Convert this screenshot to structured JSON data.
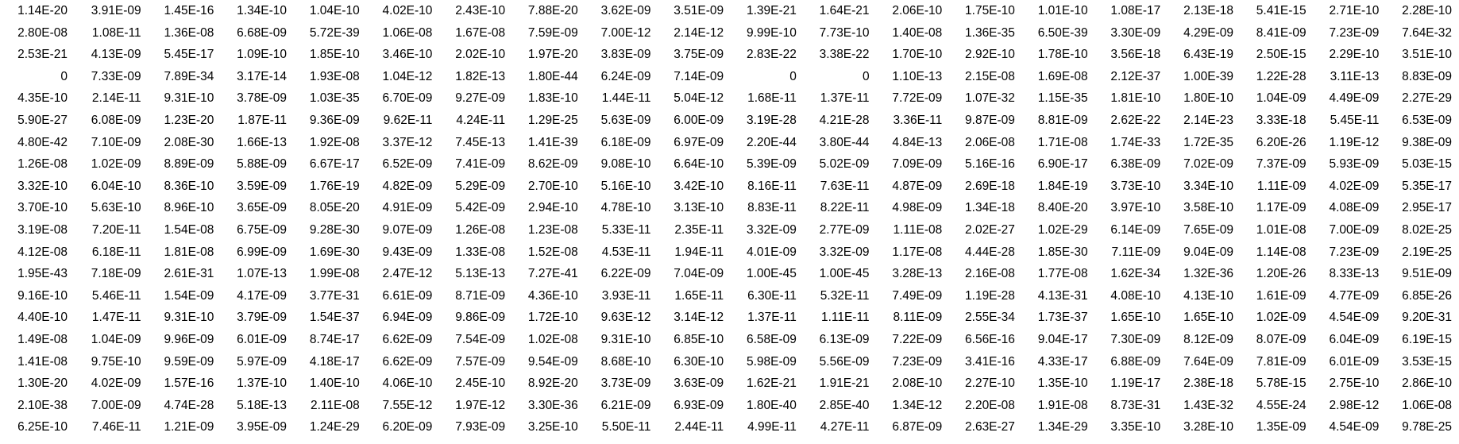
{
  "spreadsheet": {
    "rows": [
      [
        "1.14E-20",
        "3.91E-09",
        "1.45E-16",
        "1.34E-10",
        "1.04E-10",
        "4.02E-10",
        "2.43E-10",
        "7.88E-20",
        "3.62E-09",
        "3.51E-09",
        "1.39E-21",
        "1.64E-21",
        "2.06E-10",
        "1.75E-10",
        "1.01E-10",
        "1.08E-17",
        "2.13E-18",
        "5.41E-15",
        "2.71E-10",
        "2.28E-10"
      ],
      [
        "2.80E-08",
        "1.08E-11",
        "1.36E-08",
        "6.68E-09",
        "5.72E-39",
        "1.06E-08",
        "1.67E-08",
        "7.59E-09",
        "7.00E-12",
        "2.14E-12",
        "9.99E-10",
        "7.73E-10",
        "1.40E-08",
        "1.36E-35",
        "6.50E-39",
        "3.30E-09",
        "4.29E-09",
        "8.41E-09",
        "7.23E-09",
        "7.64E-32"
      ],
      [
        "2.53E-21",
        "4.13E-09",
        "5.45E-17",
        "1.09E-10",
        "1.85E-10",
        "3.46E-10",
        "2.02E-10",
        "1.97E-20",
        "3.83E-09",
        "3.75E-09",
        "2.83E-22",
        "3.38E-22",
        "1.70E-10",
        "2.92E-10",
        "1.78E-10",
        "3.56E-18",
        "6.43E-19",
        "2.50E-15",
        "2.29E-10",
        "3.51E-10"
      ],
      [
        "0",
        "7.33E-09",
        "7.89E-34",
        "3.17E-14",
        "1.93E-08",
        "1.04E-12",
        "1.82E-13",
        "1.80E-44",
        "6.24E-09",
        "7.14E-09",
        "0",
        "0",
        "1.10E-13",
        "2.15E-08",
        "1.69E-08",
        "2.12E-37",
        "1.00E-39",
        "1.22E-28",
        "3.11E-13",
        "8.83E-09"
      ],
      [
        "4.35E-10",
        "2.14E-11",
        "9.31E-10",
        "3.78E-09",
        "1.03E-35",
        "6.70E-09",
        "9.27E-09",
        "1.83E-10",
        "1.44E-11",
        "5.04E-12",
        "1.68E-11",
        "1.37E-11",
        "7.72E-09",
        "1.07E-32",
        "1.15E-35",
        "1.81E-10",
        "1.80E-10",
        "1.04E-09",
        "4.49E-09",
        "2.27E-29"
      ],
      [
        "5.90E-27",
        "6.08E-09",
        "1.23E-20",
        "1.87E-11",
        "9.36E-09",
        "9.62E-11",
        "4.24E-11",
        "1.29E-25",
        "5.63E-09",
        "6.00E-09",
        "3.19E-28",
        "4.21E-28",
        "3.36E-11",
        "9.87E-09",
        "8.81E-09",
        "2.62E-22",
        "2.14E-23",
        "3.33E-18",
        "5.45E-11",
        "6.53E-09"
      ],
      [
        "4.80E-42",
        "7.10E-09",
        "2.08E-30",
        "1.66E-13",
        "1.92E-08",
        "3.37E-12",
        "7.45E-13",
        "1.41E-39",
        "6.18E-09",
        "6.97E-09",
        "2.20E-44",
        "3.80E-44",
        "4.84E-13",
        "2.06E-08",
        "1.71E-08",
        "1.74E-33",
        "1.72E-35",
        "6.20E-26",
        "1.19E-12",
        "9.38E-09"
      ],
      [
        "1.26E-08",
        "1.02E-09",
        "8.89E-09",
        "5.88E-09",
        "6.67E-17",
        "6.52E-09",
        "7.41E-09",
        "8.62E-09",
        "9.08E-10",
        "6.64E-10",
        "5.39E-09",
        "5.02E-09",
        "7.09E-09",
        "5.16E-16",
        "6.90E-17",
        "6.38E-09",
        "7.02E-09",
        "7.37E-09",
        "5.93E-09",
        "5.03E-15"
      ],
      [
        "3.32E-10",
        "6.04E-10",
        "8.36E-10",
        "3.59E-09",
        "1.76E-19",
        "4.82E-09",
        "5.29E-09",
        "2.70E-10",
        "5.16E-10",
        "3.42E-10",
        "8.16E-11",
        "7.63E-11",
        "4.87E-09",
        "2.69E-18",
        "1.84E-19",
        "3.73E-10",
        "3.34E-10",
        "1.11E-09",
        "4.02E-09",
        "5.35E-17"
      ],
      [
        "3.70E-10",
        "5.63E-10",
        "8.96E-10",
        "3.65E-09",
        "8.05E-20",
        "4.91E-09",
        "5.42E-09",
        "2.94E-10",
        "4.78E-10",
        "3.13E-10",
        "8.83E-11",
        "8.22E-11",
        "4.98E-09",
        "1.34E-18",
        "8.40E-20",
        "3.97E-10",
        "3.58E-10",
        "1.17E-09",
        "4.08E-09",
        "2.95E-17"
      ],
      [
        "3.19E-08",
        "7.20E-11",
        "1.54E-08",
        "6.75E-09",
        "9.28E-30",
        "9.07E-09",
        "1.26E-08",
        "1.23E-08",
        "5.33E-11",
        "2.35E-11",
        "3.32E-09",
        "2.77E-09",
        "1.11E-08",
        "2.02E-27",
        "1.02E-29",
        "6.14E-09",
        "7.65E-09",
        "1.01E-08",
        "7.00E-09",
        "8.02E-25"
      ],
      [
        "4.12E-08",
        "6.18E-11",
        "1.81E-08",
        "6.99E-09",
        "1.69E-30",
        "9.43E-09",
        "1.33E-08",
        "1.52E-08",
        "4.53E-11",
        "1.94E-11",
        "4.01E-09",
        "3.32E-09",
        "1.17E-08",
        "4.44E-28",
        "1.85E-30",
        "7.11E-09",
        "9.04E-09",
        "1.14E-08",
        "7.23E-09",
        "2.19E-25"
      ],
      [
        "1.95E-43",
        "7.18E-09",
        "2.61E-31",
        "1.07E-13",
        "1.99E-08",
        "2.47E-12",
        "5.13E-13",
        "7.27E-41",
        "6.22E-09",
        "7.04E-09",
        "1.00E-45",
        "1.00E-45",
        "3.28E-13",
        "2.16E-08",
        "1.77E-08",
        "1.62E-34",
        "1.32E-36",
        "1.20E-26",
        "8.33E-13",
        "9.51E-09"
      ],
      [
        "9.16E-10",
        "5.46E-11",
        "1.54E-09",
        "4.17E-09",
        "3.77E-31",
        "6.61E-09",
        "8.71E-09",
        "4.36E-10",
        "3.93E-11",
        "1.65E-11",
        "6.30E-11",
        "5.32E-11",
        "7.49E-09",
        "1.19E-28",
        "4.13E-31",
        "4.08E-10",
        "4.13E-10",
        "1.61E-09",
        "4.77E-09",
        "6.85E-26"
      ],
      [
        "4.40E-10",
        "1.47E-11",
        "9.31E-10",
        "3.79E-09",
        "1.54E-37",
        "6.94E-09",
        "9.86E-09",
        "1.72E-10",
        "9.63E-12",
        "3.14E-12",
        "1.37E-11",
        "1.11E-11",
        "8.11E-09",
        "2.55E-34",
        "1.73E-37",
        "1.65E-10",
        "1.65E-10",
        "1.02E-09",
        "4.54E-09",
        "9.20E-31"
      ],
      [
        "1.49E-08",
        "1.04E-09",
        "9.96E-09",
        "6.01E-09",
        "8.74E-17",
        "6.62E-09",
        "7.54E-09",
        "1.02E-08",
        "9.31E-10",
        "6.85E-10",
        "6.58E-09",
        "6.13E-09",
        "7.22E-09",
        "6.56E-16",
        "9.04E-17",
        "7.30E-09",
        "8.12E-09",
        "8.07E-09",
        "6.04E-09",
        "6.19E-15"
      ],
      [
        "1.41E-08",
        "9.75E-10",
        "9.59E-09",
        "5.97E-09",
        "4.18E-17",
        "6.62E-09",
        "7.57E-09",
        "9.54E-09",
        "8.68E-10",
        "6.30E-10",
        "5.98E-09",
        "5.56E-09",
        "7.23E-09",
        "3.41E-16",
        "4.33E-17",
        "6.88E-09",
        "7.64E-09",
        "7.81E-09",
        "6.01E-09",
        "3.53E-15"
      ],
      [
        "1.30E-20",
        "4.02E-09",
        "1.57E-16",
        "1.37E-10",
        "1.40E-10",
        "4.06E-10",
        "2.45E-10",
        "8.92E-20",
        "3.73E-09",
        "3.63E-09",
        "1.62E-21",
        "1.91E-21",
        "2.08E-10",
        "2.27E-10",
        "1.35E-10",
        "1.19E-17",
        "2.38E-18",
        "5.78E-15",
        "2.75E-10",
        "2.86E-10"
      ],
      [
        "2.10E-38",
        "7.00E-09",
        "4.74E-28",
        "5.18E-13",
        "2.11E-08",
        "7.55E-12",
        "1.97E-12",
        "3.30E-36",
        "6.21E-09",
        "6.93E-09",
        "1.80E-40",
        "2.85E-40",
        "1.34E-12",
        "2.20E-08",
        "1.91E-08",
        "8.73E-31",
        "1.43E-32",
        "4.55E-24",
        "2.98E-12",
        "1.06E-08"
      ],
      [
        "6.25E-10",
        "7.46E-11",
        "1.21E-09",
        "3.95E-09",
        "1.24E-29",
        "6.20E-09",
        "7.93E-09",
        "3.25E-10",
        "5.50E-11",
        "2.44E-11",
        "4.99E-11",
        "4.27E-11",
        "6.87E-09",
        "2.63E-27",
        "1.34E-29",
        "3.35E-10",
        "3.28E-10",
        "1.35E-09",
        "4.54E-09",
        "9.78E-25"
      ]
    ]
  }
}
